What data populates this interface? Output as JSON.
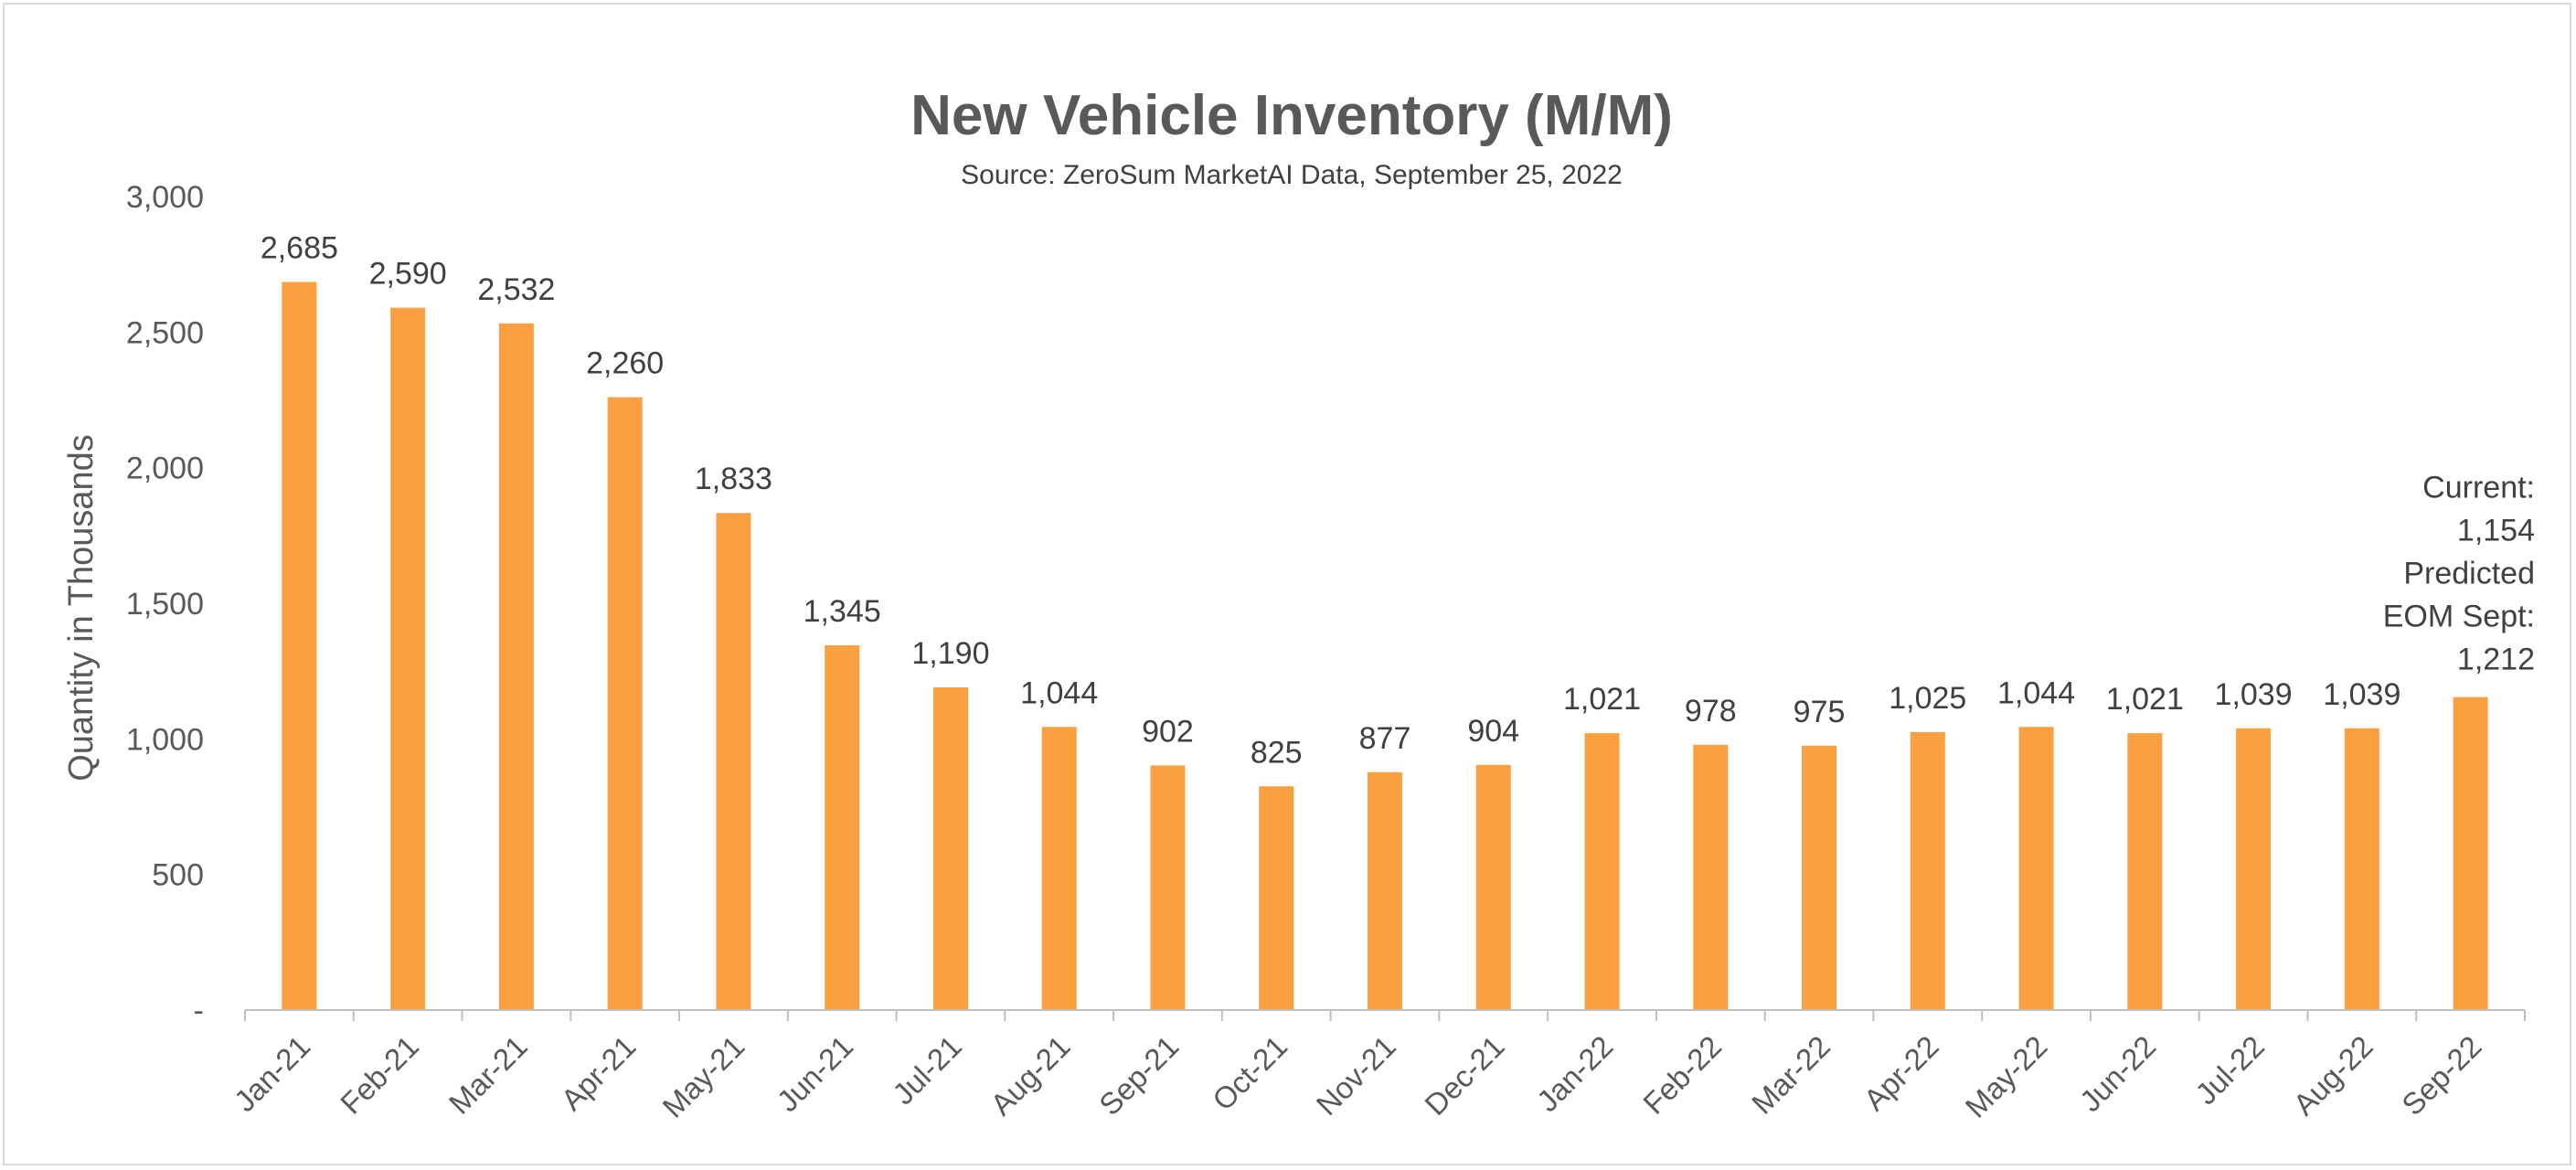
{
  "chart_data": {
    "type": "bar",
    "title": "New Vehicle Inventory (M/M)",
    "subtitle": "Source: ZeroSum MarketAI Data, September 25, 2022",
    "xlabel": "",
    "ylabel": "Quantity in Thousands",
    "ylim": [
      0,
      3000
    ],
    "yticks": [
      0,
      500,
      1000,
      1500,
      2000,
      2500,
      3000
    ],
    "ytick_labels": [
      "-",
      "500",
      "1,000",
      "1,500",
      "2,000",
      "2,500",
      "3,000"
    ],
    "grid": false,
    "legend": "none",
    "bar_color": "#FBA040",
    "categories": [
      "Jan-21",
      "Feb-21",
      "Mar-21",
      "Apr-21",
      "May-21",
      "Jun-21",
      "Jul-21",
      "Aug-21",
      "Sep-21",
      "Oct-21",
      "Nov-21",
      "Dec-21",
      "Jan-22",
      "Feb-22",
      "Mar-22",
      "Apr-22",
      "May-22",
      "Jun-22",
      "Jul-22",
      "Aug-22",
      "Sep-22"
    ],
    "values": [
      2685,
      2590,
      2532,
      2260,
      1833,
      1345,
      1190,
      1044,
      902,
      825,
      877,
      904,
      1021,
      978,
      975,
      1025,
      1044,
      1021,
      1039,
      1039,
      1154
    ],
    "data_labels": [
      "2,685",
      "2,590",
      "2,532",
      "2,260",
      "1,833",
      "1,345",
      "1,190",
      "1,044",
      "902",
      "825",
      "877",
      "904",
      "1,021",
      "978",
      "975",
      "1,025",
      "1,044",
      "1,021",
      "1,039",
      "1,039",
      ""
    ],
    "annotation": {
      "category": "Sep-22",
      "lines": [
        "Current:",
        "1,154",
        "Predicted",
        "EOM Sept:",
        "1,212"
      ]
    }
  }
}
